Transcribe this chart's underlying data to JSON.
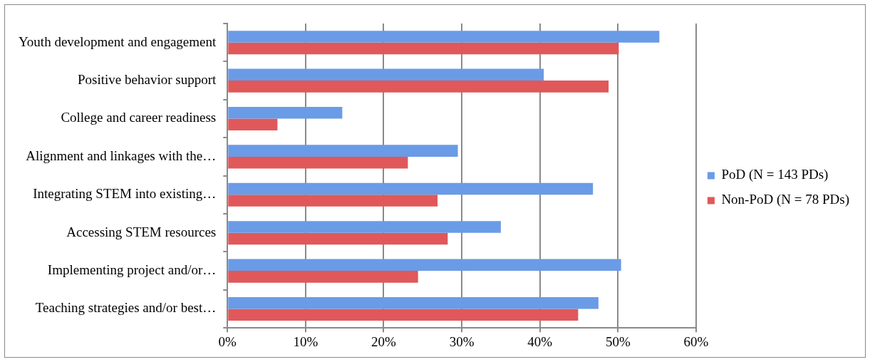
{
  "chart_data": {
    "type": "bar",
    "orientation": "horizontal",
    "categories": [
      "Youth development and engagement",
      "Positive behavior support",
      "College and career readiness",
      "Alignment and linkages with the…",
      "Integrating STEM into existing…",
      "Accessing STEM resources",
      "Implementing project and/or…",
      "Teaching strategies and/or best…"
    ],
    "series": [
      {
        "name": "PoD (N = 143 PDs)",
        "color": "#6a9be6",
        "values": [
          55.3,
          40.5,
          14.7,
          29.5,
          46.8,
          35.0,
          50.4,
          47.5
        ]
      },
      {
        "name": "Non-PoD (N = 78 PDs)",
        "color": "#e0585a",
        "values": [
          50.1,
          48.8,
          6.4,
          23.1,
          26.9,
          28.2,
          24.4,
          44.9
        ]
      }
    ],
    "xlim": [
      0,
      60
    ],
    "xticks": [
      {
        "value": 0,
        "label": "0%"
      },
      {
        "value": 10,
        "label": "10%"
      },
      {
        "value": 20,
        "label": "20%"
      },
      {
        "value": 30,
        "label": "30%"
      },
      {
        "value": 40,
        "label": "40%"
      },
      {
        "value": 50,
        "label": "50%"
      },
      {
        "value": 60,
        "label": "60%"
      }
    ],
    "grid": "x",
    "legend": "right"
  }
}
